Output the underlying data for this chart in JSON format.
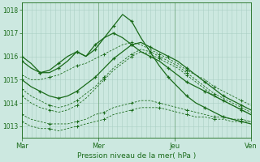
{
  "bg_color": "#cce8e0",
  "line_color": "#1a6b1a",
  "grid_color": "#aacfc4",
  "xlabel": "Pression niveau de la mer( hPa )",
  "yticks": [
    1013,
    1014,
    1015,
    1016,
    1017,
    1018
  ],
  "xtick_labels": [
    "Mar",
    "Mer",
    "Jeu",
    "Ven"
  ],
  "xtick_positions": [
    0.0,
    0.333,
    0.667,
    1.0
  ],
  "series": [
    {
      "y": [
        1016.0,
        1015.7,
        1015.3,
        1015.3,
        1015.5,
        1015.8,
        1016.2,
        1016.0,
        1016.5,
        1016.8,
        1017.0,
        1016.8,
        1016.5,
        1016.2,
        1016.0,
        1015.8,
        1015.5,
        1015.2,
        1014.9,
        1014.7,
        1014.5,
        1014.3,
        1014.1,
        1013.9,
        1013.7,
        1013.5
      ],
      "style": "solid_marker"
    },
    {
      "y": [
        1015.2,
        1015.0,
        1015.0,
        1015.1,
        1015.2,
        1015.4,
        1015.6,
        1015.7,
        1015.9,
        1016.1,
        1016.3,
        1016.5,
        1016.6,
        1016.5,
        1016.3,
        1016.1,
        1015.9,
        1015.7,
        1015.4,
        1015.2,
        1015.0,
        1014.7,
        1014.5,
        1014.3,
        1014.1,
        1013.9
      ],
      "style": "dashed_marker"
    },
    {
      "y": [
        1015.0,
        1014.7,
        1014.5,
        1014.3,
        1014.2,
        1014.3,
        1014.5,
        1014.8,
        1015.1,
        1015.5,
        1015.9,
        1016.2,
        1016.5,
        1016.6,
        1016.4,
        1016.2,
        1016.0,
        1015.8,
        1015.5,
        1015.2,
        1014.9,
        1014.6,
        1014.3,
        1014.1,
        1013.9,
        1013.7
      ],
      "style": "solid_marker"
    },
    {
      "y": [
        1014.6,
        1014.3,
        1014.1,
        1013.9,
        1013.8,
        1013.9,
        1014.1,
        1014.4,
        1014.7,
        1015.1,
        1015.5,
        1015.8,
        1016.1,
        1016.3,
        1016.2,
        1016.0,
        1015.8,
        1015.6,
        1015.3,
        1015.0,
        1014.7,
        1014.4,
        1014.2,
        1014.0,
        1013.8,
        1013.6
      ],
      "style": "dashed_marker"
    },
    {
      "y": [
        1014.3,
        1014.0,
        1013.8,
        1013.7,
        1013.6,
        1013.7,
        1013.9,
        1014.2,
        1014.6,
        1015.0,
        1015.4,
        1015.7,
        1016.0,
        1016.2,
        1016.1,
        1015.9,
        1015.7,
        1015.5,
        1015.2,
        1014.9,
        1014.6,
        1014.3,
        1014.1,
        1013.9,
        1013.7,
        1013.5
      ],
      "style": "dashed_marker"
    },
    {
      "y": [
        1013.5,
        1013.3,
        1013.2,
        1013.1,
        1013.1,
        1013.1,
        1013.2,
        1013.3,
        1013.5,
        1013.6,
        1013.8,
        1013.9,
        1014.0,
        1014.1,
        1014.1,
        1014.0,
        1013.9,
        1013.8,
        1013.7,
        1013.6,
        1013.5,
        1013.4,
        1013.4,
        1013.3,
        1013.3,
        1013.2
      ],
      "style": "dashed_marker"
    },
    {
      "y": [
        1013.2,
        1013.0,
        1012.9,
        1012.9,
        1012.8,
        1012.9,
        1013.0,
        1013.1,
        1013.2,
        1013.3,
        1013.5,
        1013.6,
        1013.7,
        1013.8,
        1013.8,
        1013.8,
        1013.7,
        1013.6,
        1013.5,
        1013.4,
        1013.4,
        1013.3,
        1013.3,
        1013.2,
        1013.2,
        1013.2
      ],
      "style": "dashed_marker"
    },
    {
      "y": [
        1015.8,
        1015.5,
        1015.3,
        1015.4,
        1015.7,
        1016.0,
        1016.2,
        1016.0,
        1016.3,
        1016.8,
        1017.3,
        1017.8,
        1017.5,
        1016.8,
        1016.2,
        1015.6,
        1015.1,
        1014.7,
        1014.3,
        1014.0,
        1013.8,
        1013.6,
        1013.4,
        1013.3,
        1013.2,
        1013.1
      ],
      "style": "solid_marker"
    }
  ],
  "ylim": [
    1012.5,
    1018.3
  ],
  "xlim": [
    0.0,
    1.0
  ]
}
